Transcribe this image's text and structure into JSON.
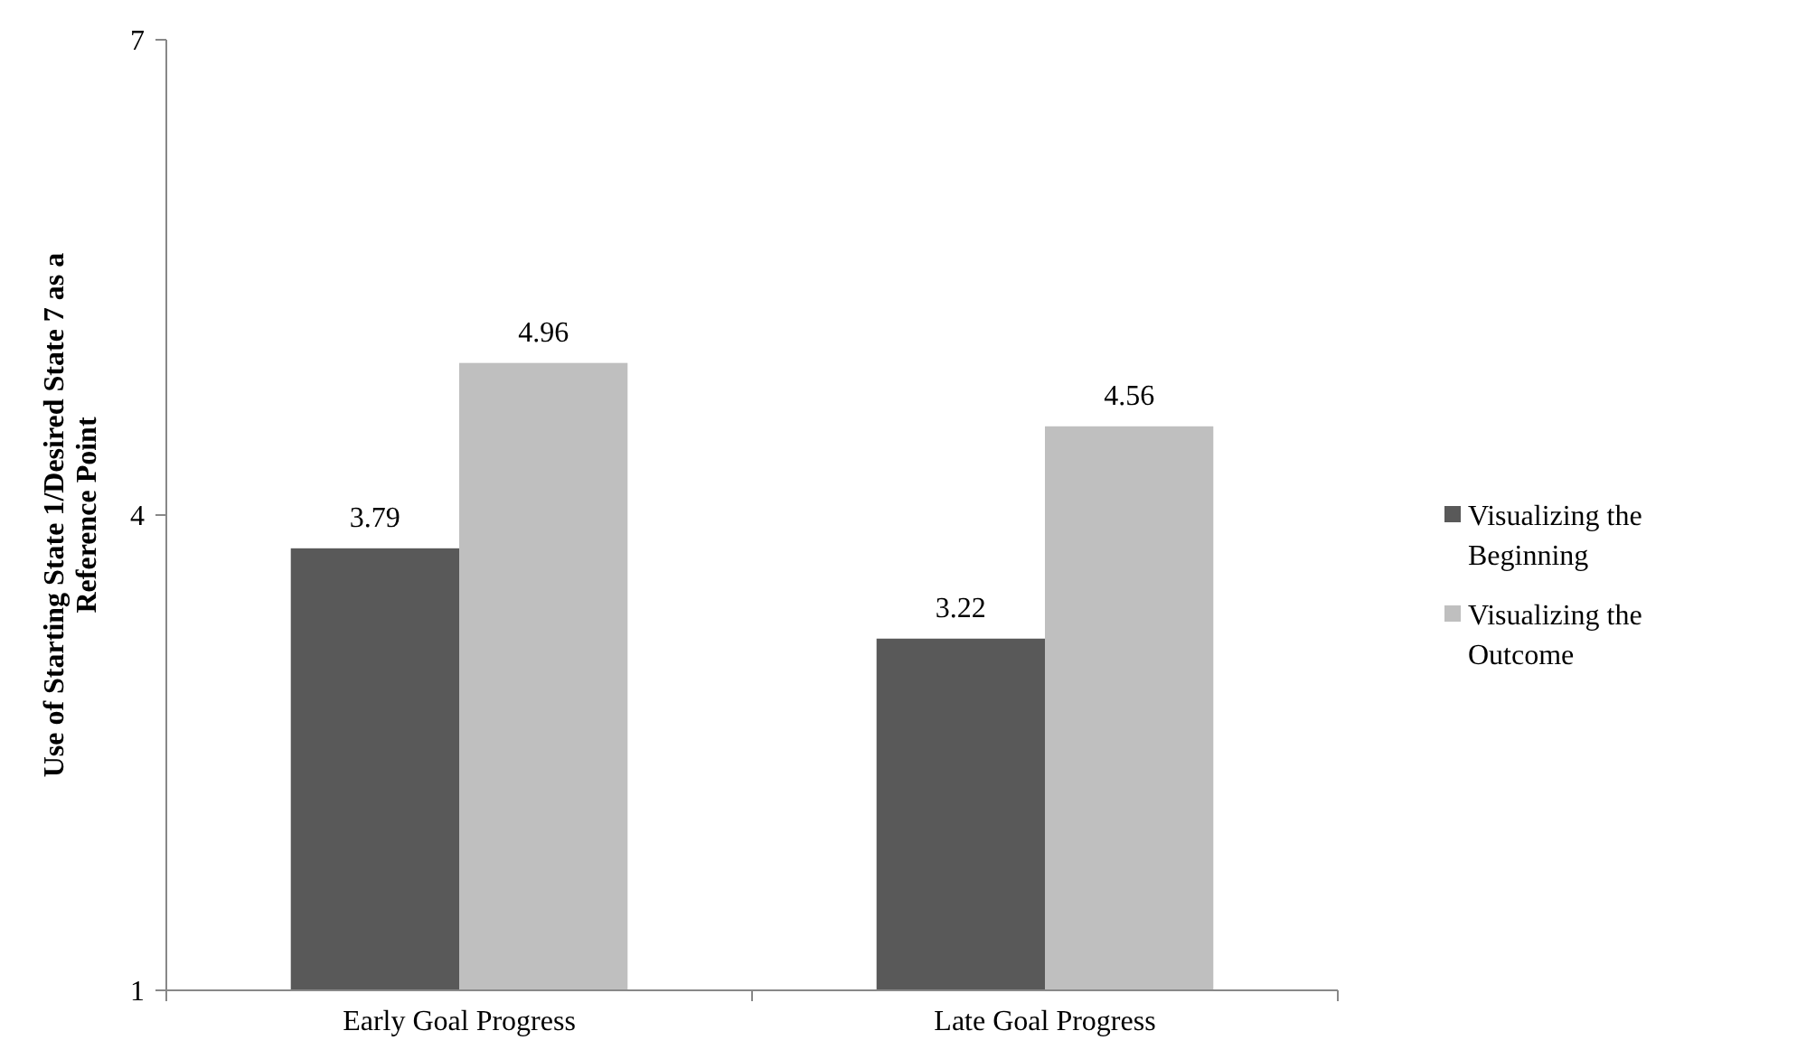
{
  "chart_data": {
    "type": "bar",
    "ylabel": "Use of Starting State 1/Desired State 7 as a Reference Point",
    "categories": [
      "Early Goal Progress",
      "Late Goal Progress"
    ],
    "series": [
      {
        "name": "Visualizing the Beginning",
        "color": "#595959",
        "values": [
          3.79,
          3.22
        ]
      },
      {
        "name": "Visualizing the Outcome",
        "color": "#bfbfbf",
        "values": [
          4.96,
          4.56
        ]
      }
    ],
    "ylim": [
      1,
      7
    ],
    "yticks": [
      1,
      4,
      7
    ],
    "data_labels": true,
    "legend": "right",
    "grid": false
  }
}
